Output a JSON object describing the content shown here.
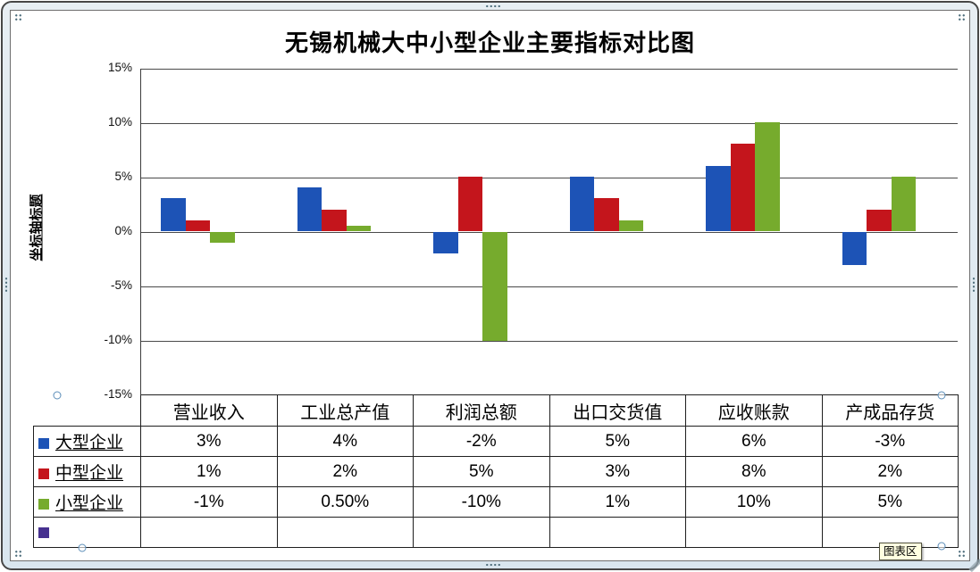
{
  "chart": {
    "title": "无锡机械大中小型企业主要指标对比图",
    "y_axis_title": "坐标轴标题",
    "tooltip_label": "图表区"
  },
  "chart_data": {
    "type": "bar",
    "title": "无锡机械大中小型企业主要指标对比图",
    "ylabel": "坐标轴标题",
    "ylim": [
      -15,
      15
    ],
    "yticks": [
      15,
      10,
      5,
      0,
      -5,
      -10,
      -15
    ],
    "ytick_labels": [
      "15%",
      "10%",
      "5%",
      "0%",
      "-5%",
      "-10%",
      "-15%"
    ],
    "grid": true,
    "legend_position": "data-table-left",
    "categories": [
      "营业收入",
      "工业总产值",
      "利润总额",
      "出口交货值",
      "应收账款",
      "产成品存货"
    ],
    "series": [
      {
        "name": "大型企业",
        "color": "#1D53B6",
        "values": [
          3,
          4,
          -2,
          5,
          6,
          -3
        ],
        "labels": [
          "3%",
          "4%",
          "-2%",
          "5%",
          "6%",
          "-3%"
        ]
      },
      {
        "name": "中型企业",
        "color": "#C4151C",
        "values": [
          1,
          2,
          5,
          3,
          8,
          2
        ],
        "labels": [
          "1%",
          "2%",
          "5%",
          "3%",
          "8%",
          "2%"
        ]
      },
      {
        "name": "小型企业",
        "color": "#76AB2D",
        "values": [
          -1,
          0.5,
          -10,
          1,
          10,
          5
        ],
        "labels": [
          "-1%",
          "0.50%",
          "-10%",
          "1%",
          "10%",
          "5%"
        ]
      },
      {
        "name": "",
        "color": "#473190",
        "values": [],
        "labels": [
          "",
          "",
          "",
          "",
          "",
          ""
        ]
      }
    ]
  }
}
